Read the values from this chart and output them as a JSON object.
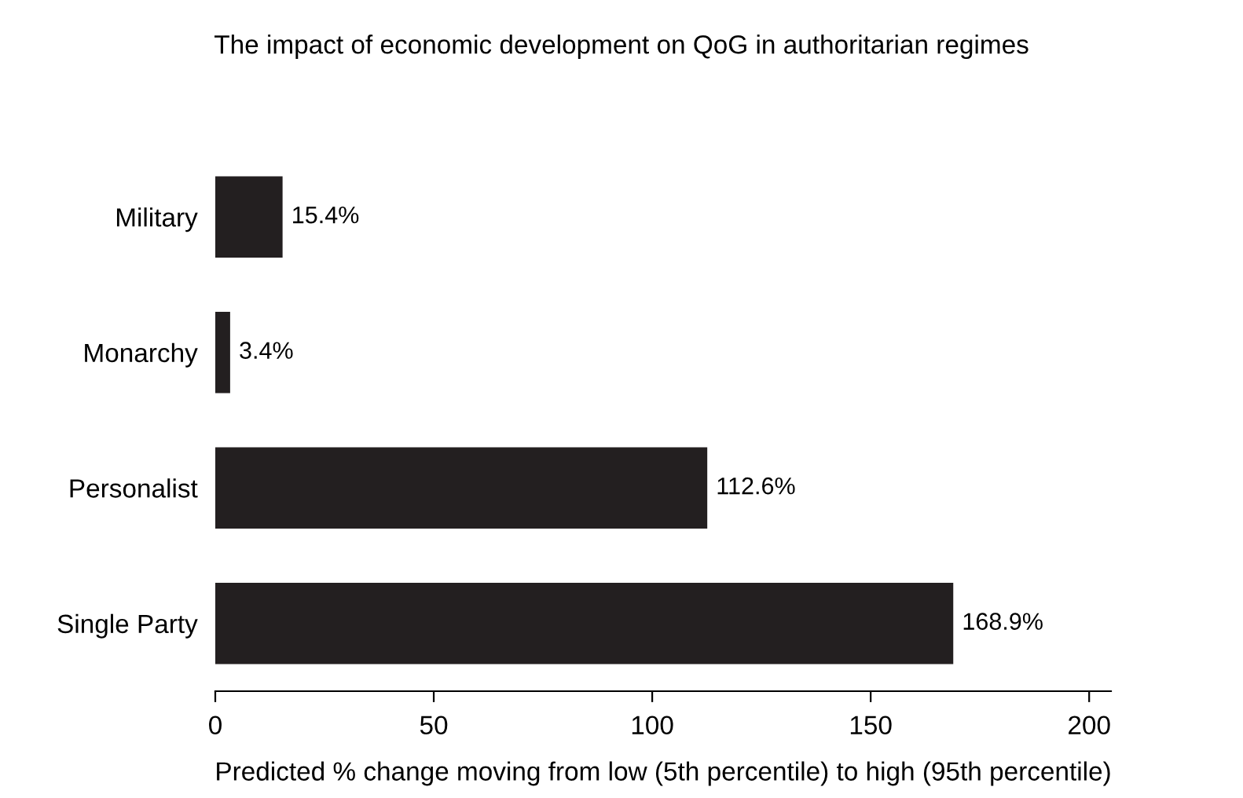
{
  "chart_data": {
    "type": "bar",
    "orientation": "horizontal",
    "title": "The impact of economic development on QoG in authoritarian regimes",
    "xlabel": "Predicted % change moving from low (5th percentile) to high (95th percentile)",
    "categories": [
      "Military",
      "Monarchy",
      "Personalist",
      "Single Party"
    ],
    "values": [
      15.4,
      3.4,
      112.6,
      168.9
    ],
    "value_labels": [
      "15.4%",
      "3.4%",
      "112.6%",
      "168.9%"
    ],
    "color": "#231f20",
    "xlim": [
      0,
      205
    ],
    "xticks": [
      0,
      50,
      100,
      150,
      200
    ],
    "grid": false
  }
}
